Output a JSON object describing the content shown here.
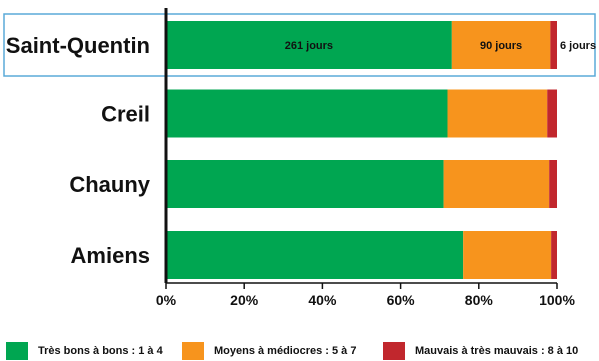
{
  "chart_data": {
    "type": "bar",
    "orientation": "horizontal",
    "stacked": true,
    "categories": [
      "Saint-Quentin",
      "Creil",
      "Chauny",
      "Amiens"
    ],
    "highlighted_category": "Saint-Quentin",
    "x_ticks": [
      "0%",
      "20%",
      "40%",
      "60%",
      "80%",
      "100%"
    ],
    "xlim": [
      0,
      100
    ],
    "grid": false,
    "legend_position": "bottom",
    "series": [
      {
        "name": "Très bons à bons : 1 à 4",
        "color": "#00a651",
        "values": [
          73.1,
          72.0,
          71.0,
          76.0
        ]
      },
      {
        "name": "Moyens à médiocres : 5 à 7",
        "color": "#f7941d",
        "values": [
          25.2,
          25.5,
          27.0,
          22.5
        ]
      },
      {
        "name": "Mauvais à très mauvais : 8 à 10",
        "color": "#c1272d",
        "values": [
          1.7,
          2.5,
          2.0,
          1.5
        ]
      }
    ],
    "data_labels": [
      [
        "261 jours",
        "",
        "",
        ""
      ],
      [
        "90 jours",
        "",
        "",
        ""
      ],
      [
        "6 jours",
        "",
        "",
        ""
      ]
    ]
  },
  "colors": {
    "axis": "#111111",
    "highlight_border": "#5aaad8"
  }
}
